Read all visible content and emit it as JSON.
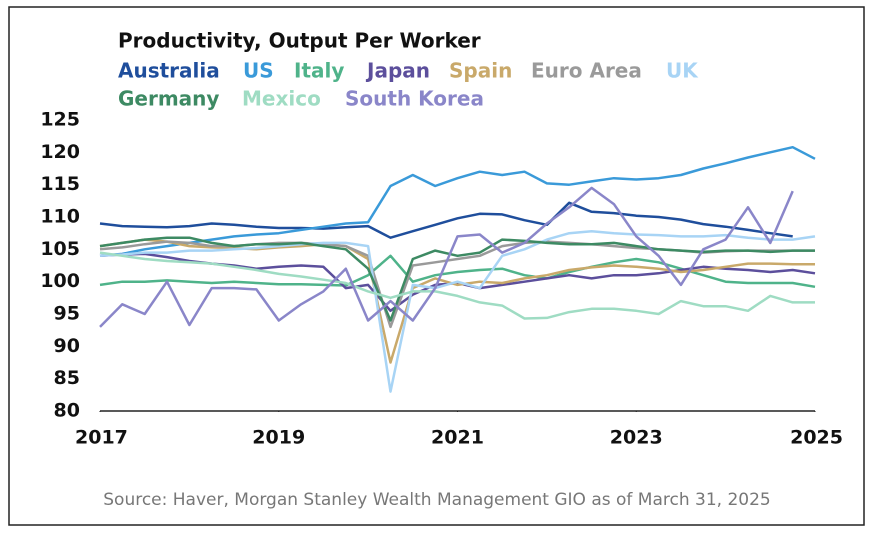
{
  "chart_data": {
    "type": "line",
    "title": "Productivity, Output Per Worker",
    "source": "Source: Haver, Morgan Stanley Wealth Management GIO as of March 31, 2025",
    "x": [
      2017,
      2017.25,
      2017.5,
      2017.75,
      2018,
      2018.25,
      2018.5,
      2018.75,
      2019,
      2019.25,
      2019.5,
      2019.75,
      2020,
      2020.25,
      2020.5,
      2020.75,
      2021,
      2021.25,
      2021.5,
      2021.75,
      2022,
      2022.25,
      2022.5,
      2022.75,
      2023,
      2023.25,
      2023.5,
      2023.75,
      2024,
      2024.25,
      2024.5,
      2024.75,
      2025
    ],
    "xlim": [
      2017,
      2025
    ],
    "xticks": [
      2017,
      2019,
      2021,
      2023,
      2025
    ],
    "ylim": [
      80,
      125
    ],
    "yticks": [
      80,
      85,
      90,
      95,
      100,
      105,
      110,
      115,
      120,
      125
    ],
    "grid": false,
    "series": [
      {
        "name": "Australia",
        "color": "#1f4e9c",
        "values": [
          109,
          108.6,
          108.5,
          108.4,
          108.6,
          109,
          108.8,
          108.5,
          108.3,
          108.3,
          108.2,
          108.4,
          108.6,
          106.8,
          107.8,
          108.8,
          109.8,
          110.5,
          110.4,
          109.5,
          108.8,
          112.2,
          110.8,
          110.6,
          110.2,
          110,
          109.6,
          108.9,
          108.5,
          108,
          107.5,
          107,
          null
        ]
      },
      {
        "name": "US",
        "color": "#3a9ad9",
        "values": [
          104,
          104.3,
          105,
          105.5,
          106,
          106.5,
          107,
          107.3,
          107.5,
          108,
          108.5,
          109,
          109.2,
          114.8,
          116.5,
          114.8,
          116,
          117,
          116.5,
          117,
          115.2,
          115,
          115.5,
          116,
          115.8,
          116,
          116.5,
          117.5,
          118.3,
          119.2,
          120,
          120.8,
          119
        ]
      },
      {
        "name": "Italy",
        "color": "#4fb38a",
        "values": [
          99.5,
          100,
          100,
          100.2,
          100,
          99.8,
          100,
          99.8,
          99.6,
          99.6,
          99.5,
          99.4,
          101,
          104,
          100,
          101,
          101.5,
          101.8,
          102,
          101,
          100.5,
          101.5,
          102.3,
          103,
          103.5,
          103,
          102,
          101,
          100,
          99.8,
          99.8,
          99.8,
          99.2
        ]
      },
      {
        "name": "Japan",
        "color": "#5c4f9c",
        "values": [
          104,
          104.2,
          104.3,
          103.8,
          103.2,
          102.8,
          102.5,
          102,
          102.3,
          102.5,
          102.3,
          99,
          99.5,
          95.5,
          98,
          99.5,
          99.8,
          99,
          99.5,
          100,
          100.5,
          101,
          100.5,
          101,
          101,
          101.3,
          101.8,
          102.3,
          102,
          101.8,
          101.5,
          101.8,
          101.3
        ]
      },
      {
        "name": "Spain",
        "color": "#c9a96a",
        "values": [
          105.5,
          106,
          106.5,
          106.2,
          105.5,
          105.3,
          105.2,
          105,
          105.3,
          105.5,
          105.8,
          105.5,
          103.5,
          87.5,
          99,
          100.5,
          99.5,
          100,
          99.8,
          100.5,
          101,
          101.8,
          102.2,
          102.5,
          102.3,
          102,
          101.5,
          101.8,
          102.3,
          102.8,
          102.8,
          102.7,
          102.7
        ]
      },
      {
        "name": "Euro Area",
        "color": "#9a9a9a",
        "values": [
          105,
          105.3,
          105.8,
          106.2,
          106,
          105.5,
          105.5,
          105.8,
          106,
          106,
          105.8,
          105.5,
          104,
          93,
          102.5,
          103,
          103.5,
          104,
          105.5,
          106,
          106.2,
          106,
          105.8,
          105.5,
          105.2,
          105,
          104.8,
          104.5,
          104.7,
          104.8,
          104.8,
          104.8,
          104.8
        ]
      },
      {
        "name": "UK",
        "color": "#a8d4f5",
        "values": [
          104,
          104.2,
          104.5,
          104.5,
          104.8,
          104.8,
          105,
          105.2,
          105.5,
          105.8,
          106,
          106,
          105.5,
          83,
          99.5,
          99,
          100,
          99,
          104,
          105,
          106.5,
          107.5,
          107.8,
          107.5,
          107.3,
          107.2,
          107,
          107,
          107.2,
          106.8,
          106.5,
          106.5,
          107
        ]
      },
      {
        "name": "Germany",
        "color": "#3d8a63",
        "values": [
          105.5,
          106,
          106.5,
          106.8,
          106.8,
          106,
          105.5,
          105.8,
          105.8,
          106,
          105.5,
          105,
          102,
          94,
          103.5,
          104.8,
          104,
          104.5,
          106.5,
          106.3,
          106,
          105.8,
          105.8,
          106,
          105.5,
          105,
          104.8,
          104.6,
          104.8,
          104.8,
          104.6,
          104.8,
          104.8
        ]
      },
      {
        "name": "Mexico",
        "color": "#9fdcc3",
        "values": [
          104.5,
          104,
          103.5,
          103.2,
          103,
          102.8,
          102.3,
          101.8,
          101.2,
          100.8,
          100.3,
          99.8,
          98.5,
          97.5,
          98.5,
          98.5,
          97.8,
          96.8,
          96.3,
          94.3,
          94.4,
          95.3,
          95.8,
          95.8,
          95.5,
          95,
          97,
          96.2,
          96.2,
          95.5,
          97.8,
          96.8,
          96.8
        ]
      },
      {
        "name": "South Korea",
        "color": "#8a86c9",
        "values": [
          93,
          96.5,
          95,
          100,
          93.3,
          99,
          99,
          98.8,
          94,
          96.5,
          98.5,
          102,
          94,
          97,
          94,
          99,
          107,
          107.3,
          104.5,
          106,
          109,
          111.5,
          114.5,
          112,
          107,
          104,
          99.5,
          105,
          106.5,
          111.5,
          106,
          114,
          null
        ]
      }
    ]
  }
}
